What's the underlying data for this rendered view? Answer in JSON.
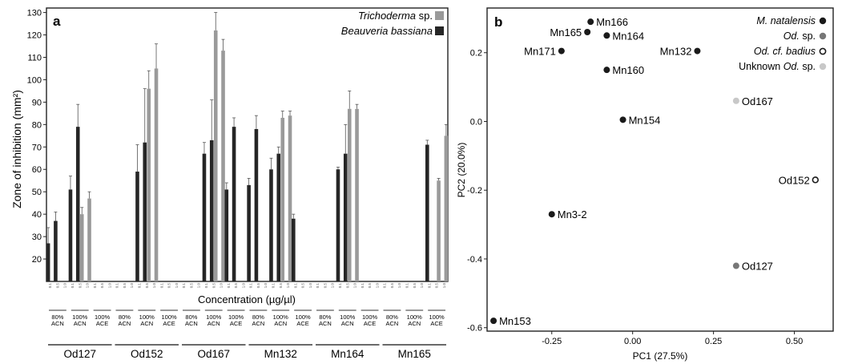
{
  "panel_a": {
    "letter": "a",
    "ylabel": "Zone of inhibition (mm²)",
    "xlabel": "Concentration (µg/µl)",
    "legend": [
      {
        "name": "Trichoderma",
        "suffix": " sp.",
        "color": "#9a9a9a"
      },
      {
        "name": "Beauveria bassiana",
        "suffix": "",
        "color": "#262626"
      }
    ],
    "conc_ticks": [
      "0.1",
      "0.5",
      "1.0"
    ],
    "groups": [
      {
        "name": "Od127",
        "solvents": [
          "80%\nACN",
          "100%\nACN",
          "100%\nACE"
        ]
      },
      {
        "name": "Od152",
        "solvents": [
          "80%\nACN",
          "100%\nACN",
          "100%\nACE"
        ]
      },
      {
        "name": "Od167",
        "solvents": [
          "80%\nACN",
          "100%\nACN",
          "100%\nACE"
        ]
      },
      {
        "name": "Mn132",
        "solvents": [
          "80%\nACN",
          "100%\nACN",
          "100%\nACE"
        ]
      },
      {
        "name": "Mn164",
        "solvents": [
          "80%\nACN",
          "100%\nACN",
          "100%\nACE"
        ]
      },
      {
        "name": "Mn165",
        "solvents": [
          "80%\nACN",
          "100%\nACN",
          "100%\nACE"
        ]
      }
    ]
  },
  "panel_b": {
    "letter": "b",
    "legend": [
      {
        "name": "M. natalensis",
        "italic_all": true,
        "color": "#1a1a1a",
        "hollow": false
      },
      {
        "name": "Od. sp.",
        "italic_part": "Od.",
        "rest": " sp.",
        "color": "#777777",
        "hollow": false
      },
      {
        "name": "Od. cf. badius",
        "italic_all": true,
        "color": "#1a1a1a",
        "hollow": true
      },
      {
        "name": "Unknown Od. sp.",
        "prefix": "Unknown ",
        "italic_part": "Od.",
        "rest": " sp.",
        "color": "#c8c8c8",
        "hollow": false
      }
    ]
  },
  "chart_data": [
    {
      "type": "bar",
      "ylabel": "Zone of inhibition (mm²)",
      "xlabel": "Concentration (µg/µl)",
      "ylim": [
        10,
        132
      ],
      "yticks": [
        20,
        30,
        40,
        50,
        60,
        70,
        80,
        90,
        100,
        110,
        120,
        130
      ],
      "series": [
        {
          "name": "Trichoderma sp.",
          "color": "#9a9a9a"
        },
        {
          "name": "Beauveria bassiana",
          "color": "#262626"
        }
      ],
      "bars": [
        {
          "group": "Od127",
          "solvent": 0,
          "conc": "0.1",
          "series": "Beauveria bassiana",
          "value": 27,
          "err": 7
        },
        {
          "group": "Od127",
          "solvent": 0,
          "conc": "0.5",
          "series": "Beauveria bassiana",
          "value": 37,
          "err": 4
        },
        {
          "group": "Od127",
          "solvent": 1,
          "conc": "0.1",
          "series": "Beauveria bassiana",
          "value": 51,
          "err": 6
        },
        {
          "group": "Od127",
          "solvent": 1,
          "conc": "0.5",
          "series": "Beauveria bassiana",
          "value": 79,
          "err": 10
        },
        {
          "group": "Od127",
          "solvent": 1,
          "conc": "0.5",
          "series": "Trichoderma sp.",
          "value": 40,
          "err": 3
        },
        {
          "group": "Od127",
          "solvent": 1,
          "conc": "1.0",
          "series": "Trichoderma sp.",
          "value": 47,
          "err": 3
        },
        {
          "group": "Od152",
          "solvent": 1,
          "conc": "0.1",
          "series": "Beauveria bassiana",
          "value": 59,
          "err": 12
        },
        {
          "group": "Od152",
          "solvent": 1,
          "conc": "0.5",
          "series": "Beauveria bassiana",
          "value": 72,
          "err": 24
        },
        {
          "group": "Od152",
          "solvent": 1,
          "conc": "0.5",
          "series": "Trichoderma sp.",
          "value": 96,
          "err": 8
        },
        {
          "group": "Od152",
          "solvent": 1,
          "conc": "1.0",
          "series": "Trichoderma sp.",
          "value": 105,
          "err": 11
        },
        {
          "group": "Od167",
          "solvent": 1,
          "conc": "0.1",
          "series": "Beauveria bassiana",
          "value": 67,
          "err": 5
        },
        {
          "group": "Od167",
          "solvent": 1,
          "conc": "0.5",
          "series": "Beauveria bassiana",
          "value": 73,
          "err": 18
        },
        {
          "group": "Od167",
          "solvent": 1,
          "conc": "0.5",
          "series": "Trichoderma sp.",
          "value": 122,
          "err": 8
        },
        {
          "group": "Od167",
          "solvent": 1,
          "conc": "1.0",
          "series": "Trichoderma sp.",
          "value": 113,
          "err": 5
        },
        {
          "group": "Od167",
          "solvent": 2,
          "conc": "0.1",
          "series": "Beauveria bassiana",
          "value": 51,
          "err": 3
        },
        {
          "group": "Od167",
          "solvent": 2,
          "conc": "0.5",
          "series": "Beauveria bassiana",
          "value": 79,
          "err": 4
        },
        {
          "group": "Mn132",
          "solvent": 0,
          "conc": "0.1",
          "series": "Beauveria bassiana",
          "value": 53,
          "err": 3
        },
        {
          "group": "Mn132",
          "solvent": 0,
          "conc": "0.5",
          "series": "Beauveria bassiana",
          "value": 78,
          "err": 6
        },
        {
          "group": "Mn132",
          "solvent": 1,
          "conc": "0.1",
          "series": "Beauveria bassiana",
          "value": 60,
          "err": 5
        },
        {
          "group": "Mn132",
          "solvent": 1,
          "conc": "0.5",
          "series": "Beauveria bassiana",
          "value": 67,
          "err": 3
        },
        {
          "group": "Mn132",
          "solvent": 1,
          "conc": "0.5",
          "series": "Trichoderma sp.",
          "value": 83,
          "err": 3
        },
        {
          "group": "Mn132",
          "solvent": 1,
          "conc": "1.0",
          "series": "Trichoderma sp.",
          "value": 84,
          "err": 2
        },
        {
          "group": "Mn132",
          "solvent": 2,
          "conc": "0.1",
          "series": "Beauveria bassiana",
          "value": 38,
          "err": 2
        },
        {
          "group": "Mn164",
          "solvent": 1,
          "conc": "0.1",
          "series": "Beauveria bassiana",
          "value": 60,
          "err": 1
        },
        {
          "group": "Mn164",
          "solvent": 1,
          "conc": "0.5",
          "series": "Beauveria bassiana",
          "value": 67,
          "err": 13
        },
        {
          "group": "Mn164",
          "solvent": 1,
          "conc": "0.5",
          "series": "Trichoderma sp.",
          "value": 87,
          "err": 8
        },
        {
          "group": "Mn164",
          "solvent": 1,
          "conc": "1.0",
          "series": "Trichoderma sp.",
          "value": 87,
          "err": 2
        },
        {
          "group": "Mn165",
          "solvent": 2,
          "conc": "0.1",
          "series": "Beauveria bassiana",
          "value": 71,
          "err": 2
        },
        {
          "group": "Mn165",
          "solvent": 2,
          "conc": "0.5",
          "series": "Trichoderma sp.",
          "value": 55,
          "err": 1
        },
        {
          "group": "Mn165",
          "solvent": 2,
          "conc": "1.0",
          "series": "Trichoderma sp.",
          "value": 75,
          "err": 5
        }
      ]
    },
    {
      "type": "scatter",
      "xlabel": "PC1 (27.5%)",
      "ylabel": "PC2 (20.0%)",
      "xlim": [
        -0.45,
        0.62
      ],
      "ylim": [
        -0.61,
        0.33
      ],
      "xticks": [
        -0.25,
        0.0,
        0.25,
        0.5
      ],
      "xtick_labels": [
        "-0.25",
        "0.00",
        "0.25",
        "0.50"
      ],
      "yticks": [
        -0.6,
        -0.4,
        -0.2,
        0.0,
        0.2
      ],
      "ytick_labels": [
        "-0.6",
        "-0.4",
        "-0.2",
        "0.0",
        "0.2"
      ],
      "points": [
        {
          "label": "Mn166",
          "x": -0.13,
          "y": 0.29,
          "class": "M. natalensis",
          "label_side": "right"
        },
        {
          "label": "Mn165",
          "x": -0.14,
          "y": 0.26,
          "class": "M. natalensis",
          "label_side": "left"
        },
        {
          "label": "Mn164",
          "x": -0.08,
          "y": 0.25,
          "class": "M. natalensis",
          "label_side": "right"
        },
        {
          "label": "Mn171",
          "x": -0.22,
          "y": 0.205,
          "class": "M. natalensis",
          "label_side": "left"
        },
        {
          "label": "Mn132",
          "x": 0.2,
          "y": 0.205,
          "class": "M. natalensis",
          "label_side": "left"
        },
        {
          "label": "Mn160",
          "x": -0.08,
          "y": 0.15,
          "class": "M. natalensis",
          "label_side": "right"
        },
        {
          "label": "Mn154",
          "x": -0.03,
          "y": 0.005,
          "class": "M. natalensis",
          "label_side": "right"
        },
        {
          "label": "Od167",
          "x": 0.32,
          "y": 0.06,
          "class": "Unknown Od. sp.",
          "label_side": "right"
        },
        {
          "label": "Od152",
          "x": 0.565,
          "y": -0.17,
          "class": "Od. cf. badius",
          "label_side": "left"
        },
        {
          "label": "Mn3-2",
          "x": -0.25,
          "y": -0.27,
          "class": "M. natalensis",
          "label_side": "right"
        },
        {
          "label": "Od127",
          "x": 0.32,
          "y": -0.42,
          "class": "Od. sp.",
          "label_side": "right"
        },
        {
          "label": "Mn153",
          "x": -0.43,
          "y": -0.58,
          "class": "M. natalensis",
          "label_side": "right"
        }
      ]
    }
  ]
}
